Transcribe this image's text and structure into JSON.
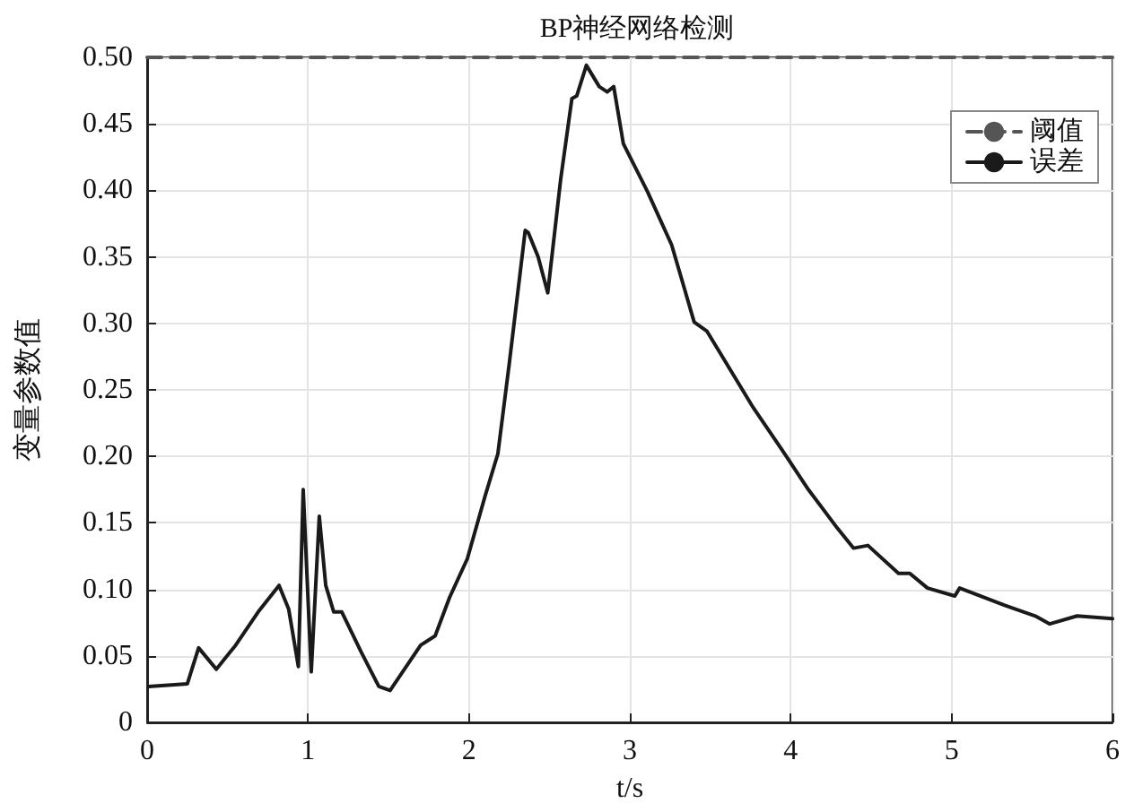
{
  "chart_data": {
    "type": "line",
    "title": "BP神经网络检测",
    "xlabel": "t/s",
    "ylabel": "变量参数值",
    "xlim": [
      0,
      6
    ],
    "xticks": [
      0,
      1,
      2,
      3,
      4,
      5,
      6
    ],
    "ylim": [
      0,
      0.5
    ],
    "yticks": [
      0,
      {
        "value": 0.05,
        "label": "0.05"
      },
      {
        "value": 0.1,
        "label": "0.10"
      },
      {
        "value": 0.15,
        "label": "0.15"
      },
      {
        "value": 0.2,
        "label": "0.20"
      },
      {
        "value": 0.25,
        "label": "0.25"
      },
      {
        "value": 0.3,
        "label": "0.30"
      },
      {
        "value": 0.35,
        "label": "0.35"
      },
      {
        "value": 0.4,
        "label": "0.40"
      },
      {
        "value": 0.45,
        "label": "0.45"
      },
      {
        "value": 0.5,
        "label": "0.50"
      }
    ],
    "grid": true,
    "legend": "top right",
    "marker": "none",
    "series": [
      {
        "name": "阈值",
        "color": "#555555",
        "line_style": "dashed",
        "x": [
          0,
          6
        ],
        "values": [
          0.5,
          0.5
        ]
      },
      {
        "name": "误差",
        "color": "#1a1a1a",
        "line_style": "solid",
        "x": [
          0.01,
          0.25,
          0.32,
          0.43,
          0.55,
          0.69,
          0.82,
          0.88,
          0.94,
          0.97,
          1.02,
          1.07,
          1.11,
          1.16,
          1.21,
          1.33,
          1.44,
          1.51,
          1.7,
          1.79,
          1.88,
          1.99,
          2.1,
          2.18,
          2.25,
          2.35,
          2.37,
          2.43,
          2.49,
          2.57,
          2.64,
          2.67,
          2.73,
          2.81,
          2.86,
          2.9,
          2.96,
          3.11,
          3.26,
          3.4,
          3.48,
          3.55,
          3.76,
          3.94,
          4.11,
          4.29,
          4.39,
          4.48,
          4.67,
          4.74,
          4.85,
          5.02,
          5.05,
          5.33,
          5.52,
          5.61,
          5.78,
          6.0
        ],
        "values": [
          0.027,
          0.029,
          0.056,
          0.04,
          0.058,
          0.083,
          0.103,
          0.085,
          0.042,
          0.175,
          0.038,
          0.155,
          0.103,
          0.083,
          0.083,
          0.053,
          0.027,
          0.024,
          0.058,
          0.065,
          0.094,
          0.123,
          0.17,
          0.202,
          0.269,
          0.37,
          0.368,
          0.35,
          0.323,
          0.408,
          0.469,
          0.471,
          0.494,
          0.478,
          0.474,
          0.478,
          0.435,
          0.399,
          0.359,
          0.301,
          0.294,
          0.28,
          0.238,
          0.206,
          0.175,
          0.146,
          0.131,
          0.133,
          0.112,
          0.112,
          0.101,
          0.095,
          0.101,
          0.088,
          0.08,
          0.074,
          0.08,
          0.078
        ]
      }
    ]
  }
}
